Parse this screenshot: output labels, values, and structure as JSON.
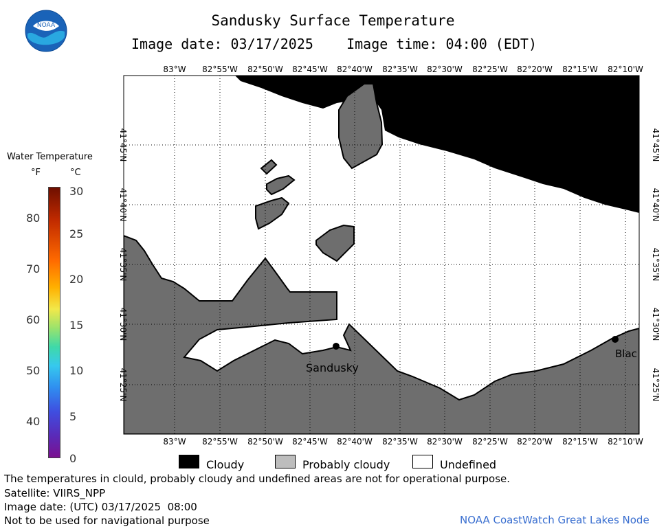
{
  "header": {
    "title": "Sandusky Surface Temperature",
    "subtitle": "Image date: 03/17/2025    Image time: 04:00 (EDT)",
    "logo_text": "NOAA"
  },
  "colorbar": {
    "title": "Water Temperature",
    "unit_f": "°F",
    "unit_c": "°C",
    "f_ticks": [
      "80",
      "70",
      "60",
      "50",
      "40"
    ],
    "c_ticks": [
      "30",
      "25",
      "20",
      "15",
      "10",
      "5",
      "0"
    ]
  },
  "map": {
    "lon_labels": [
      "83°W",
      "82°55'W",
      "82°50'W",
      "82°45'W",
      "82°40'W",
      "82°35'W",
      "82°30'W",
      "82°25'W",
      "82°20'W",
      "82°15'W",
      "82°10'W"
    ],
    "lat_labels": [
      "41°45'N",
      "41°40'N",
      "41°35'N",
      "41°30'N",
      "41°25'N"
    ],
    "places": [
      {
        "name": "Sandusky"
      },
      {
        "name": "Blac"
      }
    ],
    "colors": {
      "cloudy": "#000000",
      "probably_cloudy": "#6e6e6e",
      "undefined": "#ffffff"
    }
  },
  "legend": {
    "cloudy": "Cloudy",
    "probably_cloudy": "Probably cloudy",
    "undefined": "Undefined"
  },
  "footer": {
    "disclaimer": "The temperatures in clould, probably cloudy and undefined areas are not for operational purpose.",
    "satellite": "Satellite: VIIRS_NPP",
    "utc_date": "Image date: (UTC) 03/17/2025  08:00",
    "navigation": "Not to be used for navigational purpose",
    "credit": "NOAA CoastWatch Great Lakes Node"
  }
}
